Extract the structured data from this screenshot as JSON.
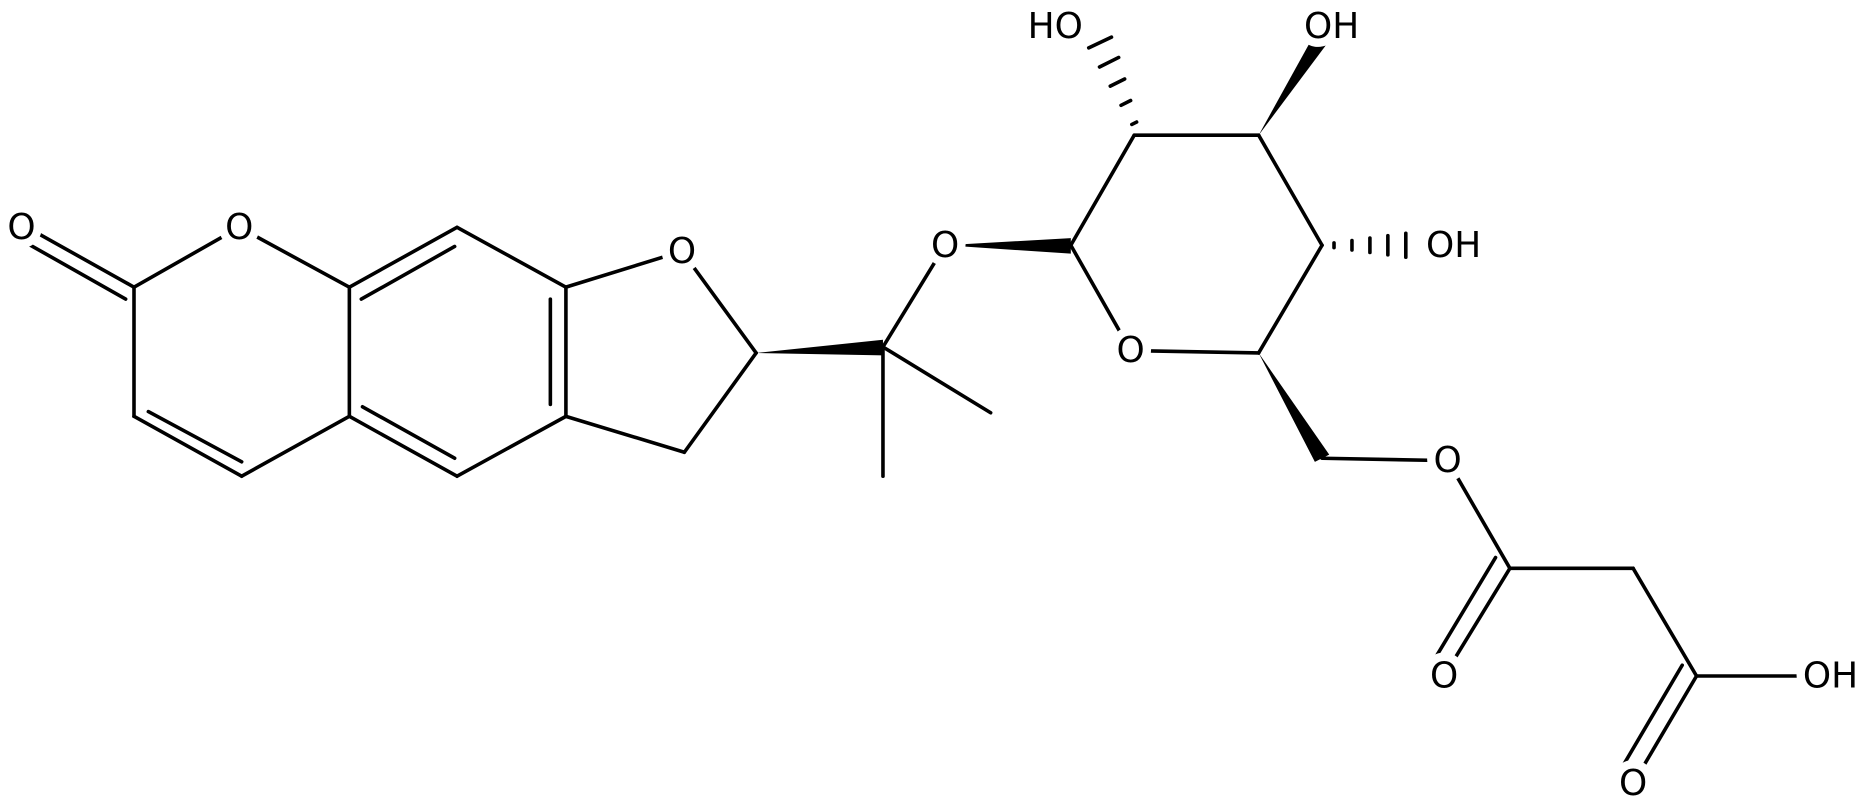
{
  "atoms": [
    {
      "label": "O"
    },
    {
      "label": "O"
    },
    {
      "label": "O"
    },
    {
      "label": "O"
    },
    {
      "label": "HO"
    },
    {
      "label": "OH"
    },
    {
      "label": "OH"
    },
    {
      "label": "O"
    },
    {
      "label": "O"
    },
    {
      "label": "O"
    },
    {
      "label": "OH"
    },
    {
      "label": "O"
    }
  ]
}
